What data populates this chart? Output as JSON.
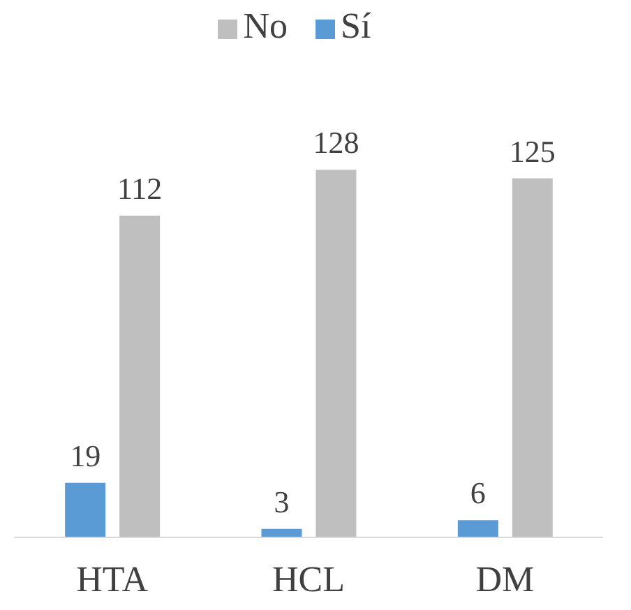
{
  "chart_data": {
    "type": "bar",
    "categories": [
      "HTA",
      "HCL",
      "DM"
    ],
    "series": [
      {
        "name": "Sí",
        "color": "#5b9bd5",
        "values": [
          19,
          3,
          6
        ]
      },
      {
        "name": "No",
        "color": "#bfbfbf",
        "values": [
          112,
          128,
          125
        ]
      }
    ],
    "data_labels": true,
    "legend": "top",
    "grid": false
  }
}
